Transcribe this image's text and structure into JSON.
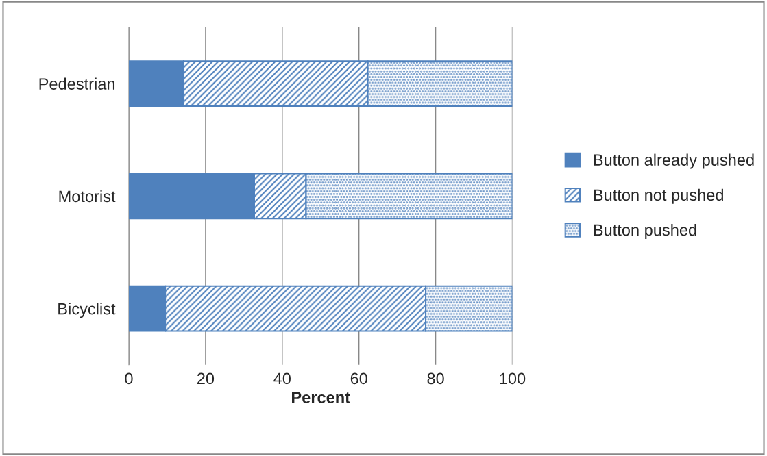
{
  "chart_data": {
    "type": "bar",
    "orientation": "horizontal",
    "stacked": true,
    "xlabel": "Percent",
    "categories": [
      "Pedestrian",
      "Motorist",
      "Bicyclist"
    ],
    "series": [
      {
        "name": "Button already pushed",
        "color": "#4f81bd",
        "values": [
          14.3,
          32.7,
          9.5
        ]
      },
      {
        "name": "Button not pushed",
        "color": "#4f81bd",
        "values": [
          48,
          13.5,
          67.9
        ]
      },
      {
        "name": "Button pushed",
        "color": "#4f81bd",
        "values": [
          37.7,
          53.8,
          22.6
        ]
      }
    ],
    "xlim": [
      0,
      100
    ],
    "xticks": [
      0,
      20,
      40,
      60,
      80,
      100
    ],
    "grid": "x",
    "legend": "right"
  }
}
